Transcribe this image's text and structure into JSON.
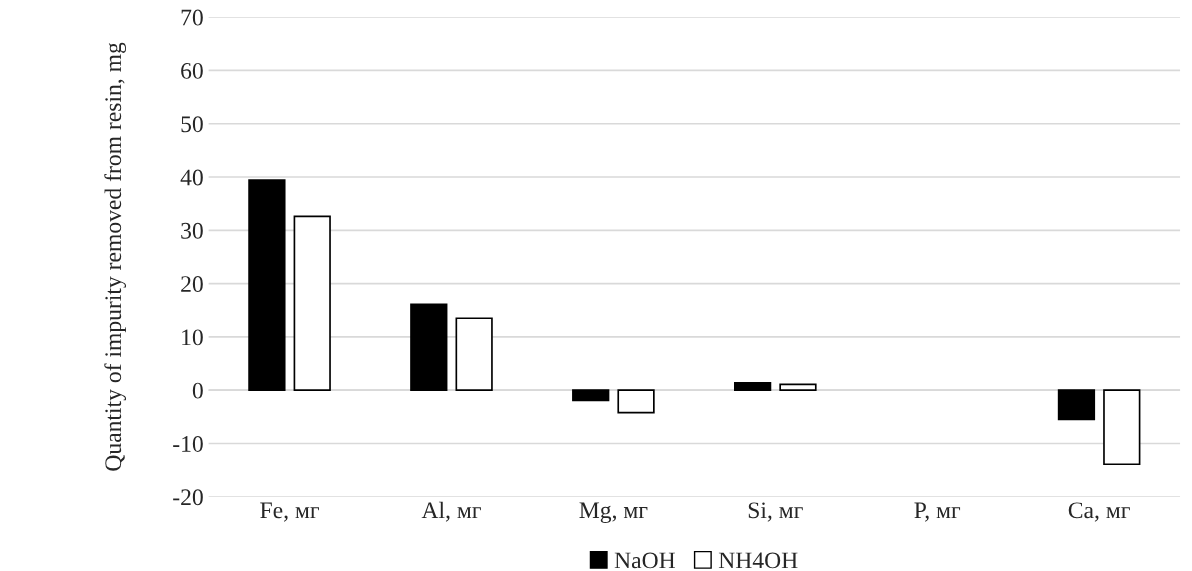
{
  "chart_data": {
    "type": "bar",
    "ylabel": "Quantity of impurity removed from resin, mg",
    "categories": [
      "Fe, мг",
      "Al, мг",
      "Mg, мг",
      "Si, мг",
      "P, мг",
      "Ca, мг"
    ],
    "series": [
      {
        "name": "NaOH",
        "color": "#000000",
        "values": [
          39.4,
          16.1,
          -1.9,
          1.4,
          null,
          -5.5
        ]
      },
      {
        "name": "NH4OH",
        "color": "#ffffff",
        "values": [
          32.6,
          13.5,
          -4.2,
          1.1,
          null,
          -13.9
        ]
      }
    ],
    "ylim": [
      -20,
      70
    ],
    "yticks": [
      -20,
      -10,
      0,
      10,
      20,
      30,
      40,
      50,
      60,
      70
    ],
    "grid": "y",
    "legend": "bottom"
  }
}
